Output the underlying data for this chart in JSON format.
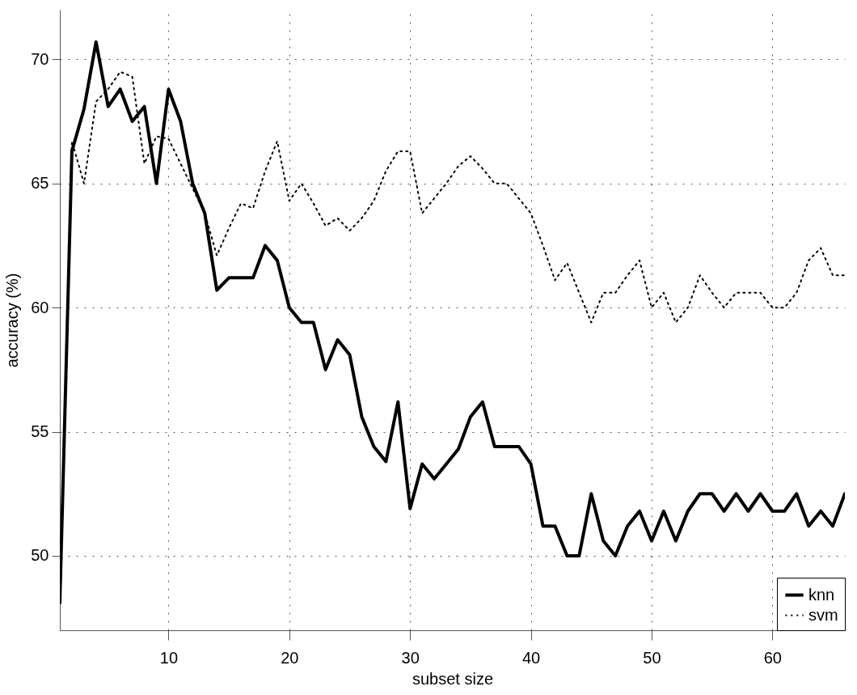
{
  "chart_data": {
    "type": "line",
    "xlabel": "subset size",
    "ylabel": "accuracy (%)",
    "x": [
      1,
      2,
      3,
      4,
      5,
      6,
      7,
      8,
      9,
      10,
      11,
      12,
      13,
      14,
      15,
      16,
      17,
      18,
      19,
      20,
      21,
      22,
      23,
      24,
      25,
      26,
      27,
      28,
      29,
      30,
      31,
      32,
      33,
      34,
      35,
      36,
      37,
      38,
      39,
      40,
      41,
      42,
      43,
      44,
      45,
      46,
      47,
      48,
      49,
      50,
      51,
      52,
      53,
      54,
      55,
      56,
      57,
      58,
      59,
      60,
      61,
      62,
      63,
      64,
      65,
      66
    ],
    "series": [
      {
        "name": "knn",
        "color": "#000000",
        "line_style": "solid",
        "values": [
          48.1,
          66.3,
          68.0,
          70.7,
          68.1,
          68.8,
          67.5,
          68.1,
          65.0,
          68.8,
          67.5,
          65.0,
          63.8,
          60.7,
          61.2,
          61.2,
          61.2,
          62.5,
          61.9,
          60.0,
          59.4,
          59.4,
          57.5,
          58.7,
          58.1,
          55.6,
          54.4,
          53.8,
          56.2,
          51.9,
          53.7,
          53.1,
          53.7,
          54.3,
          55.6,
          56.2,
          54.4,
          54.4,
          54.4,
          53.7,
          51.2,
          51.2,
          50.0,
          50.0,
          52.5,
          50.6,
          50.0,
          51.2,
          51.8,
          50.6,
          51.8,
          50.6,
          51.8,
          52.5,
          52.5,
          51.8,
          52.5,
          51.8,
          52.5,
          51.8,
          51.8,
          52.5,
          51.2,
          51.8,
          51.2,
          52.5
        ]
      },
      {
        "name": "svm",
        "color": "#000000",
        "line_style": "dotted",
        "values": [
          48.1,
          66.7,
          65.0,
          68.3,
          68.8,
          69.5,
          69.3,
          65.8,
          66.9,
          66.8,
          65.8,
          64.8,
          63.8,
          62.1,
          63.2,
          64.2,
          64.0,
          65.5,
          66.7,
          64.3,
          65.0,
          64.2,
          63.3,
          63.6,
          63.1,
          63.6,
          64.3,
          65.5,
          66.3,
          66.3,
          63.8,
          64.4,
          65.0,
          65.7,
          66.1,
          65.6,
          65.0,
          65.0,
          64.4,
          63.8,
          62.5,
          61.1,
          61.8,
          60.6,
          59.4,
          60.6,
          60.6,
          61.3,
          61.9,
          60.0,
          60.6,
          59.4,
          60.0,
          61.3,
          60.6,
          60.0,
          60.6,
          60.6,
          60.6,
          60.0,
          60.0,
          60.6,
          61.9,
          62.4,
          61.3,
          61.3
        ]
      }
    ],
    "xlim": [
      1,
      66
    ],
    "xticks": [
      10,
      20,
      30,
      40,
      50,
      60
    ],
    "ylim": [
      47,
      72
    ],
    "yticks": [
      50,
      55,
      60,
      65,
      70
    ],
    "grid": true,
    "legend": "bottom right"
  }
}
